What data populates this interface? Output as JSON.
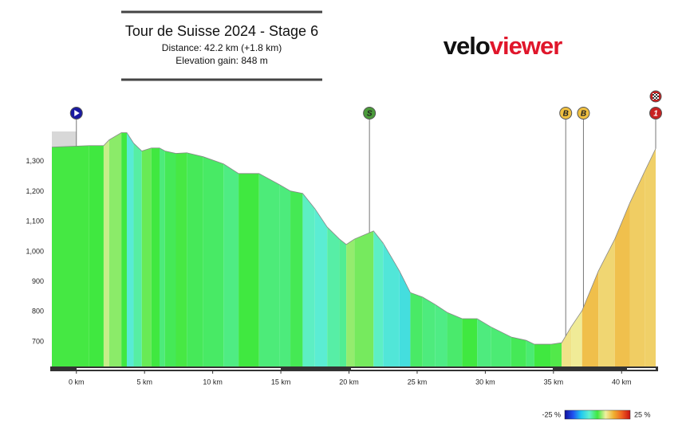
{
  "chart_data": {
    "type": "elevation-profile",
    "title": "Tour de Suisse 2024 - Stage 6",
    "subtitle": [
      "Distance: 42.2 km (+1.8 km)",
      "Elevation gain: 848 m"
    ],
    "logo": [
      "velo",
      "viewer"
    ],
    "logo_colors": [
      "#111111",
      "#e0162b"
    ],
    "x": [
      -1.8,
      0.94,
      2.0,
      2.4,
      3.3,
      3.7,
      4.2,
      4.8,
      5.5,
      6.1,
      6.5,
      7.3,
      8.1,
      9.3,
      10.8,
      11.9,
      13.4,
      14.9,
      15.7,
      16.6,
      17.5,
      18.4,
      19.3,
      19.8,
      20.4,
      21.8,
      22.5,
      23.7,
      24.5,
      25.4,
      26.3,
      27.2,
      28.3,
      29.4,
      30.4,
      31.9,
      33.0,
      33.6,
      34.8,
      35.6,
      36.3,
      37.1,
      38.3,
      39.5,
      40.6,
      41.7,
      42.5
    ],
    "series": [
      {
        "values": [
          1348,
          1353,
          1353,
          1372,
          1396,
          1396,
          1361,
          1335,
          1345,
          1345,
          1335,
          1327,
          1329,
          1316,
          1292,
          1260,
          1260,
          1223,
          1202,
          1194,
          1143,
          1082,
          1042,
          1024,
          1042,
          1069,
          1029,
          936,
          864,
          849,
          825,
          798,
          777,
          777,
          750,
          716,
          705,
          692,
          692,
          697,
          750,
          804,
          936,
          1042,
          1162,
          1268,
          1343
        ]
      }
    ],
    "xlim": [
      -1.8,
      42.5
    ],
    "ylim": [
      618,
      1400
    ],
    "xticks": [
      {
        "value": 0,
        "label": "0 km"
      },
      {
        "value": 5,
        "label": "5 km"
      },
      {
        "value": 10,
        "label": "10 km"
      },
      {
        "value": 15,
        "label": "15 km"
      },
      {
        "value": 20,
        "label": "20 km"
      },
      {
        "value": 25,
        "label": "25 km"
      },
      {
        "value": 30,
        "label": "30 km"
      },
      {
        "value": 35,
        "label": "35 km"
      },
      {
        "value": 40,
        "label": "40 km"
      }
    ],
    "yticks": [
      700,
      800,
      900,
      {
        "value": 1000,
        "label": "1,000"
      },
      {
        "value": 1100,
        "label": "1,100"
      },
      {
        "value": 1200,
        "label": "1,200"
      },
      {
        "value": 1300,
        "label": "1,300"
      }
    ],
    "gradient_scale": [
      {
        "value": -25,
        "label": "-25 %"
      },
      {
        "value": 25,
        "label": "25 %"
      }
    ],
    "gradient_colors": [
      "#10109a",
      "#2050f0",
      "#20c8f0",
      "#60f0d0",
      "#40e840",
      "#f0f0a0",
      "#f0b030",
      "#f06020",
      "#c81010"
    ],
    "markers": [
      {
        "x": 0,
        "kind": "start",
        "color": "#1a1aa0"
      },
      {
        "x": 21.5,
        "label": "S",
        "color": "#4a9a3a"
      },
      {
        "x": 35.9,
        "label": "B",
        "color": "#f0c040"
      },
      {
        "x": 37.2,
        "label": "B",
        "color": "#f0c040"
      },
      {
        "x": 42.5,
        "label": "1",
        "kind": "finish",
        "color": "#c82020"
      }
    ]
  }
}
